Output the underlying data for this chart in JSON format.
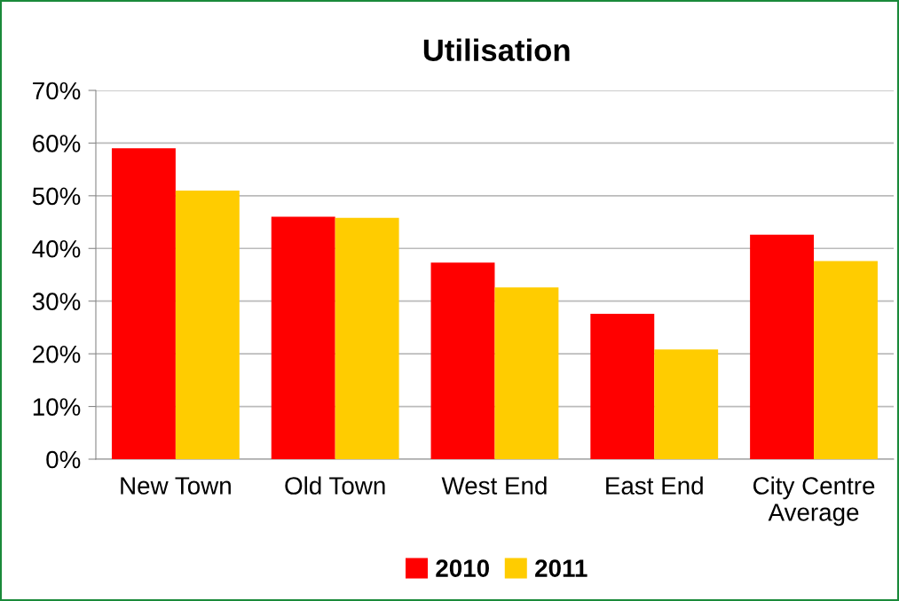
{
  "chart_data": {
    "type": "bar",
    "title": "Utilisation",
    "categories": [
      "New Town",
      "Old Town",
      "West End",
      "East End",
      "City Centre\nAverage"
    ],
    "series": [
      {
        "name": "2010",
        "color": "#ff0000",
        "values": [
          59,
          46,
          37.3,
          27.6,
          42.6
        ]
      },
      {
        "name": "2011",
        "color": "#ffcc00",
        "values": [
          51,
          45.8,
          32.6,
          20.8,
          37.6
        ]
      }
    ],
    "ylim": [
      0,
      70
    ],
    "yticks": [
      {
        "value": 0,
        "label": "0%"
      },
      {
        "value": 10,
        "label": "10%"
      },
      {
        "value": 20,
        "label": "20%"
      },
      {
        "value": 30,
        "label": "30%"
      },
      {
        "value": 40,
        "label": "40%"
      },
      {
        "value": 50,
        "label": "50%"
      },
      {
        "value": 60,
        "label": "60%"
      },
      {
        "value": 70,
        "label": "70%"
      }
    ],
    "grid": "y",
    "legend": "bottom"
  }
}
